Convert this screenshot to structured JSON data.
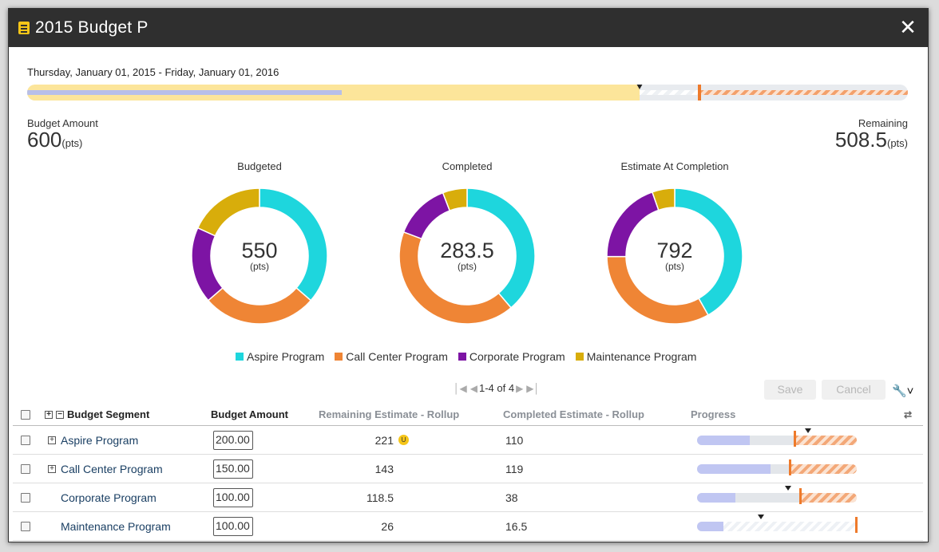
{
  "window": {
    "title": "2015 Budget P"
  },
  "timeline": {
    "date_range": "Thursday, January 01, 2015 - Friday, January 01, 2016",
    "elapsed_fraction": 0.695,
    "completed_fraction": 0.357,
    "budget_fraction": 0.763
  },
  "kpi": {
    "budget_label": "Budget Amount",
    "budget_value": "600",
    "budget_unit": "(pts)",
    "remaining_label": "Remaining",
    "remaining_value": "508.5",
    "remaining_unit": "(pts)"
  },
  "colors": {
    "aspire": "#1ed6dd",
    "call_center": "#ef8535",
    "corporate": "#7d14a4",
    "maintenance": "#d8ad0b"
  },
  "chart_data": [
    {
      "type": "pie",
      "title": "Budgeted",
      "center_value": "550",
      "center_unit": "(pts)",
      "categories": [
        "Aspire Program",
        "Call Center Program",
        "Corporate Program",
        "Maintenance Program"
      ],
      "values": [
        200,
        150,
        100,
        100
      ]
    },
    {
      "type": "pie",
      "title": "Completed",
      "center_value": "283.5",
      "center_unit": "(pts)",
      "categories": [
        "Aspire Program",
        "Call Center Program",
        "Corporate Program",
        "Maintenance Program"
      ],
      "values": [
        110,
        119,
        38,
        16.5
      ]
    },
    {
      "type": "pie",
      "title": "Estimate At Completion",
      "center_value": "792",
      "center_unit": "(pts)",
      "categories": [
        "Aspire Program",
        "Call Center Program",
        "Corporate Program",
        "Maintenance Program"
      ],
      "values": [
        331,
        262,
        156.5,
        42.5
      ]
    }
  ],
  "legend": [
    {
      "label": "Aspire Program",
      "color": "#1ed6dd"
    },
    {
      "label": "Call Center Program",
      "color": "#ef8535"
    },
    {
      "label": "Corporate Program",
      "color": "#7d14a4"
    },
    {
      "label": "Maintenance Program",
      "color": "#d8ad0b"
    }
  ],
  "pager": {
    "text": "1-4 of 4"
  },
  "toolbar": {
    "save_label": "Save",
    "cancel_label": "Cancel"
  },
  "grid": {
    "headers": {
      "segment": "Budget Segment",
      "amount": "Budget Amount",
      "remaining": "Remaining Estimate - Rollup",
      "completed": "Completed Estimate - Rollup",
      "progress": "Progress"
    },
    "rows": [
      {
        "name": "Aspire Program",
        "expandable": true,
        "amount": "200.00",
        "remaining": "221",
        "flag": "U",
        "completed": "110",
        "progress_fraction": 0.33,
        "budget_fraction": 0.61,
        "elapsed_fraction": 0.695,
        "over_budget": true
      },
      {
        "name": "Call Center Program",
        "expandable": true,
        "amount": "150.00",
        "remaining": "143",
        "flag": "",
        "completed": "119",
        "progress_fraction": 0.46,
        "budget_fraction": 0.58,
        "elapsed_fraction": null,
        "over_budget": true
      },
      {
        "name": "Corporate Program",
        "expandable": false,
        "amount": "100.00",
        "remaining": "118.5",
        "flag": "",
        "completed": "38",
        "progress_fraction": 0.24,
        "budget_fraction": 0.645,
        "elapsed_fraction": 0.57,
        "over_budget": true
      },
      {
        "name": "Maintenance Program",
        "expandable": false,
        "amount": "100.00",
        "remaining": "26",
        "flag": "",
        "completed": "16.5",
        "progress_fraction": 0.165,
        "budget_fraction": 1.0,
        "elapsed_fraction": 0.4,
        "over_budget": false
      }
    ]
  }
}
